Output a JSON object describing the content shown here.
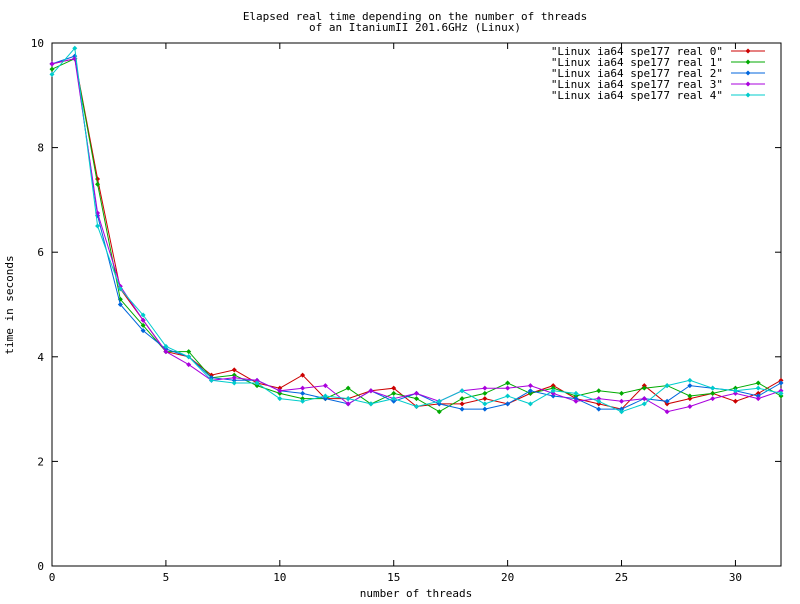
{
  "chart_data": {
    "type": "line",
    "title_line1": "Elapsed real time depending on the number of threads",
    "title_line2": "of an ItaniumII 201.6GHz (Linux)",
    "xlabel": "number of threads",
    "ylabel": "time in seconds",
    "xlim": [
      0,
      32
    ],
    "ylim": [
      0,
      10
    ],
    "x_ticks": [
      0,
      5,
      10,
      15,
      20,
      25,
      30
    ],
    "y_ticks": [
      0,
      2,
      4,
      6,
      8,
      10
    ],
    "grid": false,
    "legend_position": "top-right",
    "x": [
      0,
      1,
      2,
      3,
      4,
      5,
      6,
      7,
      8,
      9,
      10,
      11,
      12,
      13,
      14,
      15,
      16,
      17,
      18,
      19,
      20,
      21,
      22,
      23,
      24,
      25,
      26,
      27,
      28,
      29,
      30,
      31,
      32
    ],
    "series": [
      {
        "name": "\"Linux ia64 spe177 real 0\"",
        "color": "#cc0000",
        "values": [
          9.6,
          9.7,
          7.4,
          5.3,
          4.7,
          4.1,
          4.0,
          3.65,
          3.75,
          3.5,
          3.4,
          3.65,
          3.2,
          3.2,
          3.35,
          3.4,
          3.05,
          3.1,
          3.1,
          3.2,
          3.1,
          3.3,
          3.45,
          3.2,
          3.1,
          3.0,
          3.45,
          3.1,
          3.2,
          3.3,
          3.15,
          3.3,
          3.55
        ]
      },
      {
        "name": "\"Linux ia64 spe177 real 1\"",
        "color": "#00aa00",
        "values": [
          9.5,
          9.7,
          7.3,
          5.1,
          4.6,
          4.1,
          4.1,
          3.6,
          3.65,
          3.45,
          3.3,
          3.2,
          3.2,
          3.4,
          3.1,
          3.3,
          3.2,
          2.95,
          3.2,
          3.3,
          3.5,
          3.3,
          3.4,
          3.25,
          3.35,
          3.3,
          3.4,
          3.45,
          3.25,
          3.3,
          3.4,
          3.5,
          3.25
        ]
      },
      {
        "name": "\"Linux ia64 spe177 real 2\"",
        "color": "#0066dd",
        "values": [
          9.6,
          9.75,
          6.7,
          5.0,
          4.5,
          4.15,
          4.0,
          3.6,
          3.55,
          3.55,
          3.35,
          3.3,
          3.2,
          3.1,
          3.35,
          3.15,
          3.3,
          3.1,
          3.0,
          3.0,
          3.1,
          3.35,
          3.25,
          3.2,
          3.0,
          3.0,
          3.2,
          3.15,
          3.45,
          3.4,
          3.35,
          3.25,
          3.5
        ]
      },
      {
        "name": "\"Linux ia64 spe177 real 3\"",
        "color": "#aa00dd",
        "values": [
          9.6,
          9.7,
          6.75,
          5.35,
          4.7,
          4.1,
          3.85,
          3.55,
          3.6,
          3.55,
          3.35,
          3.4,
          3.45,
          3.1,
          3.35,
          3.2,
          3.3,
          3.15,
          3.35,
          3.4,
          3.4,
          3.45,
          3.3,
          3.15,
          3.2,
          3.15,
          3.2,
          2.95,
          3.05,
          3.2,
          3.3,
          3.2,
          3.35
        ]
      },
      {
        "name": "\"Linux ia64 spe177 real 4\"",
        "color": "#00cccc",
        "values": [
          9.4,
          9.9,
          6.5,
          5.3,
          4.8,
          4.2,
          4.0,
          3.55,
          3.5,
          3.5,
          3.2,
          3.15,
          3.25,
          3.2,
          3.1,
          3.2,
          3.05,
          3.15,
          3.35,
          3.1,
          3.25,
          3.1,
          3.35,
          3.3,
          3.15,
          2.95,
          3.1,
          3.45,
          3.55,
          3.4,
          3.35,
          3.4,
          3.3
        ]
      }
    ]
  }
}
